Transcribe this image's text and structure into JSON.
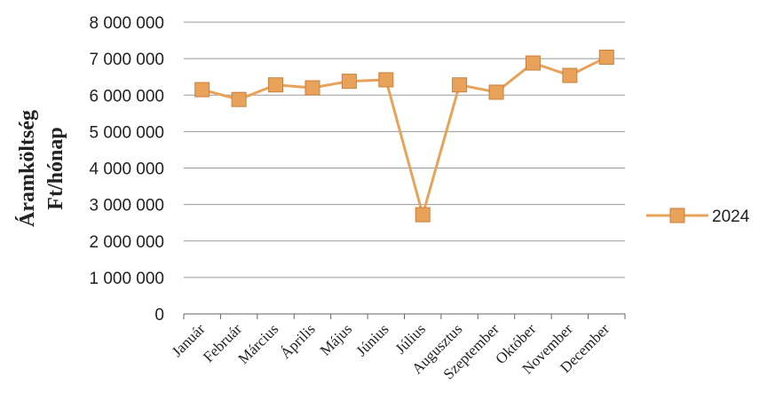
{
  "chart_data": {
    "type": "line",
    "categories": [
      "Január",
      "Február",
      "Március",
      "Április",
      "Május",
      "Június",
      "Július",
      "Augusztus",
      "Szeptember",
      "Október",
      "November",
      "December"
    ],
    "series": [
      {
        "name": "2024",
        "values": [
          6150000,
          5880000,
          6280000,
          6200000,
          6380000,
          6420000,
          2720000,
          6280000,
          6080000,
          6880000,
          6540000,
          7040000
        ],
        "color": "#E8A25A"
      }
    ],
    "ylabel_line1": "Áramköltség",
    "ylabel_line2": "Ft/hónap",
    "ylim": [
      0,
      8000000
    ],
    "yticks": [
      "0",
      "1 000 000",
      "2 000 000",
      "3 000 000",
      "4 000 000",
      "5 000 000",
      "6 000 000",
      "7 000 000",
      "8 000 000"
    ],
    "grid": true,
    "legend_position": "right",
    "gridline_color": "#999999",
    "marker": "square"
  }
}
